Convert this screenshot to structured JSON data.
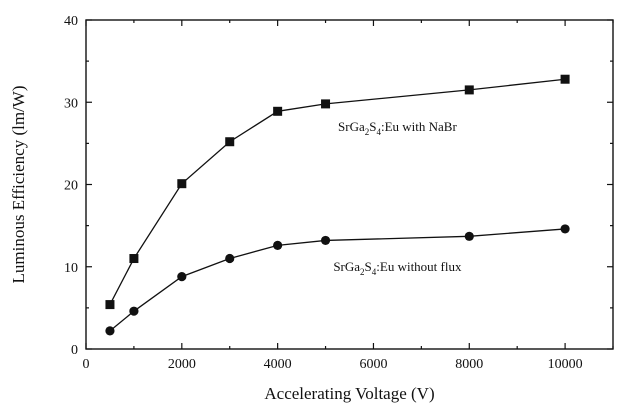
{
  "chart_data": {
    "type": "line",
    "title": "",
    "xlabel": "Accelerating Voltage (V)",
    "ylabel": "Luminous Efficiency (lm/W)",
    "xlim": [
      0,
      11000
    ],
    "ylim": [
      0,
      40
    ],
    "x_ticks": [
      0,
      2000,
      4000,
      6000,
      8000,
      10000
    ],
    "y_ticks": [
      0,
      10,
      20,
      30,
      40
    ],
    "grid": false,
    "legend": "none",
    "series": [
      {
        "name": "",
        "marker": "square",
        "x": [
          500,
          1000,
          2000,
          3000,
          4000,
          5000,
          8000,
          10000
        ],
        "y": [
          5.4,
          11.0,
          20.1,
          25.2,
          28.9,
          29.8,
          31.5,
          32.8
        ]
      },
      {
        "name": "",
        "marker": "circle",
        "x": [
          500,
          1000,
          2000,
          3000,
          4000,
          5000,
          8000,
          10000
        ],
        "y": [
          2.2,
          4.6,
          8.8,
          11.0,
          12.6,
          13.2,
          13.7,
          14.6
        ]
      }
    ],
    "annotations": [
      {
        "series": 0,
        "x": 6500,
        "y": 26.5,
        "parts": [
          {
            "t": "SrGa"
          },
          {
            "t": "2",
            "sub": true
          },
          {
            "t": "S"
          },
          {
            "t": "4",
            "sub": true
          },
          {
            "t": ":Eu with NaBr"
          }
        ]
      },
      {
        "series": 1,
        "x": 6500,
        "y": 9.5,
        "parts": [
          {
            "t": "SrGa"
          },
          {
            "t": "2",
            "sub": true
          },
          {
            "t": "S"
          },
          {
            "t": "4",
            "sub": true
          },
          {
            "t": ":Eu without flux"
          }
        ]
      }
    ]
  }
}
